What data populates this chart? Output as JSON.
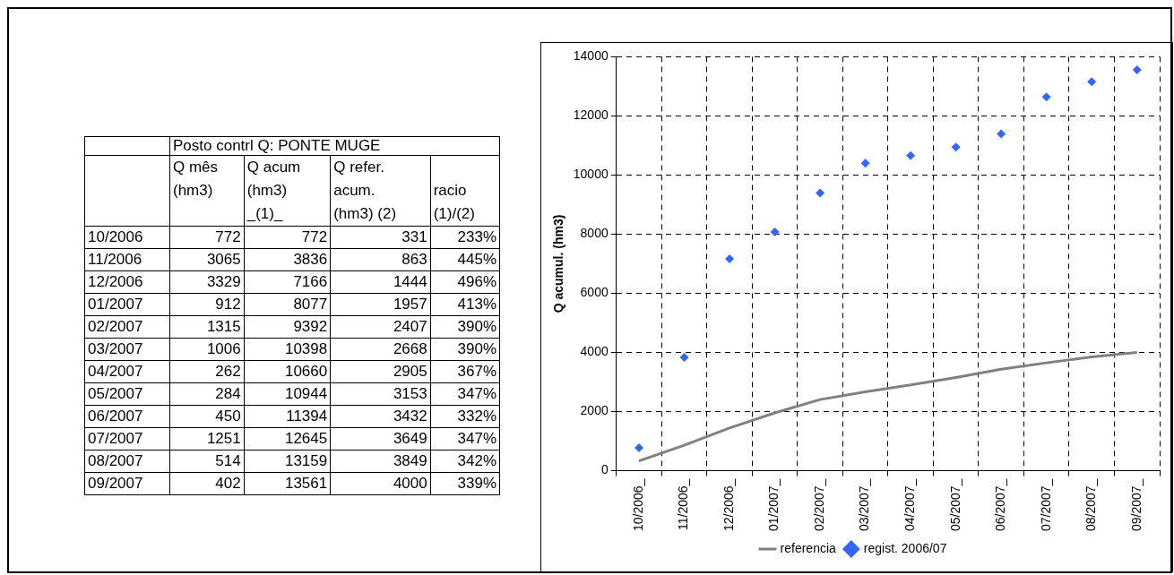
{
  "chart_data": [
    {
      "type": "other",
      "title": "Posto contrl Q: PONTE MUGE",
      "categories": [
        "10/2006",
        "11/2006",
        "12/2006",
        "01/2007",
        "02/2007",
        "03/2007",
        "04/2007",
        "05/2007",
        "06/2007",
        "07/2007",
        "08/2007",
        "09/2007"
      ],
      "data_labels": true,
      "series": [
        {
          "name": "Q mês\n(hm3)",
          "values": [
            772,
            3065,
            3329,
            912,
            1315,
            1006,
            262,
            284,
            450,
            1251,
            514,
            402
          ]
        },
        {
          "name": "Q acum\n(hm3)\n_(1)_",
          "values": [
            772,
            3836,
            7166,
            8077,
            9392,
            10398,
            10660,
            10944,
            11394,
            12645,
            13159,
            13561
          ]
        },
        {
          "name": "Q refer.\nacum.\n(hm3) (2)",
          "values": [
            331,
            863,
            1444,
            1957,
            2407,
            2668,
            2905,
            3153,
            3432,
            3649,
            3849,
            4000
          ]
        },
        {
          "name": "\nracio\n(1)/(2)",
          "values": [
            233,
            445,
            496,
            413,
            390,
            390,
            367,
            347,
            332,
            347,
            342,
            339
          ],
          "value_labels": [
            "233%",
            "445%",
            "496%",
            "413%",
            "390%",
            "390%",
            "367%",
            "347%",
            "332%",
            "347%",
            "342%",
            "339%"
          ]
        }
      ]
    },
    {
      "type": "line",
      "ylabel": "Q acumul. (hm3)",
      "categories": [
        "10/2006_",
        "11/2006_",
        "12/2006_",
        "01/2007_",
        "02/2007_",
        "03/2007_",
        "04/2007_",
        "05/2007_",
        "06/2007_",
        "07/2007_",
        "08/2007_",
        "09/2007_"
      ],
      "ylim": [
        0,
        14000
      ],
      "yticks": [
        0,
        2000,
        4000,
        6000,
        8000,
        10000,
        12000,
        14000
      ],
      "grid": true,
      "legend": "bottom",
      "series": [
        {
          "name": "referencia",
          "type": "line",
          "color": "#808080",
          "marker": "none",
          "values": [
            331,
            863,
            1444,
            1957,
            2407,
            2668,
            2905,
            3153,
            3432,
            3649,
            3849,
            4000
          ]
        },
        {
          "name": "regist. 2006/07",
          "type": "scatter",
          "color": "#3366ff",
          "marker": "diamond",
          "values": [
            772,
            3836,
            7166,
            8077,
            9392,
            10398,
            10660,
            10944,
            11394,
            12645,
            13159,
            13561
          ]
        }
      ]
    }
  ]
}
